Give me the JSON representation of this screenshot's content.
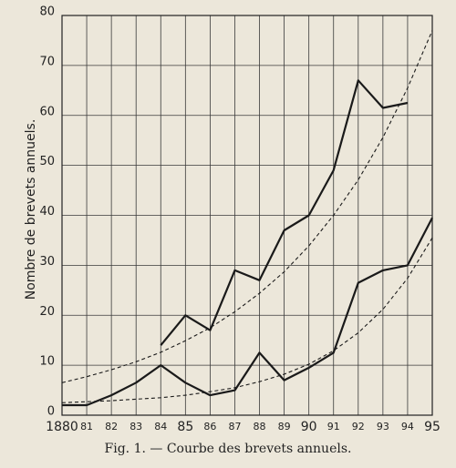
{
  "chart_data": {
    "type": "line",
    "caption": "Fig. 1. — Courbe des brevets annuels.",
    "ylabel": "Nombre de brevets annuels.",
    "x": [
      1880,
      1881,
      1882,
      1883,
      1884,
      1885,
      1886,
      1887,
      1888,
      1889,
      1890,
      1891,
      1892,
      1893,
      1894,
      1895
    ],
    "xlim": [
      1880,
      1895
    ],
    "xticks": [
      1880,
      {
        "value": 1881,
        "label": "81"
      },
      {
        "value": 1882,
        "label": "82"
      },
      {
        "value": 1883,
        "label": "83"
      },
      {
        "value": 1884,
        "label": "84"
      },
      {
        "value": 1885,
        "label": "85"
      },
      {
        "value": 1886,
        "label": "86"
      },
      {
        "value": 1887,
        "label": "87"
      },
      {
        "value": 1888,
        "label": "88"
      },
      {
        "value": 1889,
        "label": "89"
      },
      {
        "value": 1890,
        "label": "90"
      },
      {
        "value": 1891,
        "label": "91"
      },
      {
        "value": 1892,
        "label": "92"
      },
      {
        "value": 1893,
        "label": "93"
      },
      {
        "value": 1894,
        "label": "94"
      },
      {
        "value": 1895,
        "label": "95"
      }
    ],
    "ylim": [
      0,
      80
    ],
    "yticks": [
      0,
      10,
      20,
      30,
      40,
      50,
      60,
      70,
      80
    ],
    "grid": true,
    "series": [
      {
        "color": "#1a1a1a",
        "dashed": false,
        "values": [
          null,
          null,
          null,
          null,
          14,
          20,
          17,
          29,
          27,
          37,
          40,
          49,
          67,
          61.5,
          62.5,
          null
        ]
      },
      {
        "color": "#1a1a1a",
        "dashed": false,
        "values": [
          2,
          2,
          4,
          6.5,
          10,
          6.5,
          4,
          5,
          12.5,
          7,
          9.5,
          12.5,
          26.5,
          29,
          30,
          39.5
        ]
      },
      {
        "color": "#1a1a1a",
        "dashed": true,
        "values": [
          6.5,
          7.7,
          9.1,
          10.7,
          12.6,
          14.9,
          17.5,
          20.7,
          24.4,
          28.7,
          33.9,
          40,
          47.1,
          55.6,
          65.5,
          77
        ]
      },
      {
        "color": "#1a1a1a",
        "dashed": true,
        "values": [
          2.5,
          2.7,
          2.9,
          3.2,
          3.5,
          4,
          4.7,
          5.5,
          6.7,
          8.2,
          10.2,
          12.9,
          16.5,
          21.2,
          27.4,
          35.5
        ]
      }
    ]
  }
}
